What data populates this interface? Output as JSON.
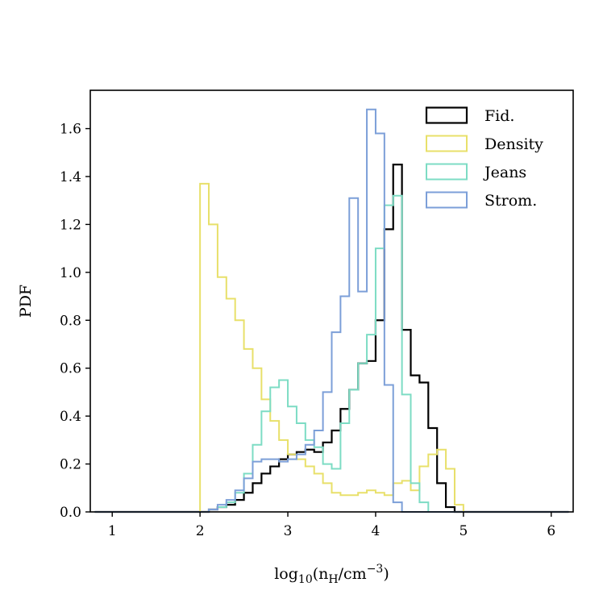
{
  "chart_data": {
    "type": "histogram-step",
    "title": "",
    "xlabel": {
      "prefix": "log",
      "prefix_sub": "10",
      "open": "(n",
      "n_sub": "H",
      "mid": "/cm",
      "exp": "−3",
      "close": ")"
    },
    "ylabel": "PDF",
    "xlim": [
      0.75,
      6.25
    ],
    "ylim": [
      0.0,
      1.76
    ],
    "xticks": [
      1,
      2,
      3,
      4,
      5,
      6
    ],
    "xtick_labels": [
      "1",
      "2",
      "3",
      "4",
      "5",
      "6"
    ],
    "yticks": [
      0.0,
      0.2,
      0.4,
      0.6,
      0.8,
      1.0,
      1.2,
      1.4,
      1.6
    ],
    "ytick_labels": [
      "0.0",
      "0.2",
      "0.4",
      "0.6",
      "0.8",
      "1.0",
      "1.2",
      "1.4",
      "1.6"
    ],
    "legend_position": "top-right",
    "bin_edges": [
      0.8,
      0.9,
      1.0,
      1.1,
      1.2,
      1.3,
      1.4,
      1.5,
      1.6,
      1.7,
      1.8,
      1.9,
      2.0,
      2.1,
      2.2,
      2.3,
      2.4,
      2.5,
      2.6,
      2.7,
      2.8,
      2.9,
      3.0,
      3.1,
      3.2,
      3.3,
      3.4,
      3.5,
      3.6,
      3.7,
      3.8,
      3.9,
      4.0,
      4.1,
      4.2,
      4.3,
      4.4,
      4.5,
      4.6,
      4.7,
      4.8,
      4.9,
      5.0,
      5.1,
      5.2,
      5.3,
      5.4,
      5.5,
      5.6,
      5.7,
      5.8,
      5.9,
      6.0,
      6.1,
      6.2
    ],
    "series": [
      {
        "name": "Fid.",
        "color": "#000000",
        "values": [
          0,
          0,
          0,
          0,
          0,
          0,
          0,
          0,
          0,
          0,
          0,
          0,
          0.0,
          0.01,
          0.02,
          0.03,
          0.05,
          0.08,
          0.12,
          0.16,
          0.19,
          0.22,
          0.24,
          0.25,
          0.26,
          0.25,
          0.29,
          0.34,
          0.43,
          0.51,
          0.62,
          0.63,
          0.8,
          1.18,
          1.45,
          0.76,
          0.57,
          0.54,
          0.35,
          0.12,
          0.02,
          0,
          0,
          0,
          0,
          0,
          0,
          0,
          0,
          0,
          0,
          0,
          0,
          0
        ]
      },
      {
        "name": "Density",
        "color": "#e8e06a",
        "values": [
          0,
          0,
          0,
          0,
          0,
          0,
          0,
          0,
          0,
          0,
          0,
          0,
          1.37,
          1.2,
          0.98,
          0.89,
          0.8,
          0.68,
          0.6,
          0.47,
          0.38,
          0.3,
          0.24,
          0.22,
          0.19,
          0.16,
          0.12,
          0.08,
          0.07,
          0.07,
          0.08,
          0.09,
          0.08,
          0.07,
          0.12,
          0.13,
          0.09,
          0.19,
          0.24,
          0.26,
          0.18,
          0.03,
          0,
          0,
          0,
          0,
          0,
          0,
          0,
          0,
          0,
          0,
          0,
          0
        ]
      },
      {
        "name": "Jeans",
        "color": "#7ddcc4",
        "values": [
          0,
          0,
          0,
          0,
          0,
          0,
          0,
          0,
          0,
          0,
          0,
          0,
          0.0,
          0.01,
          0.02,
          0.04,
          0.08,
          0.16,
          0.28,
          0.42,
          0.52,
          0.55,
          0.44,
          0.37,
          0.3,
          0.27,
          0.2,
          0.18,
          0.37,
          0.51,
          0.62,
          0.74,
          1.1,
          1.28,
          1.32,
          0.49,
          0.12,
          0.04,
          0,
          0,
          0,
          0,
          0,
          0,
          0,
          0,
          0,
          0,
          0,
          0,
          0,
          0,
          0,
          0
        ]
      },
      {
        "name": "Strom.",
        "color": "#7c9fd8",
        "values": [
          0,
          0,
          0,
          0,
          0,
          0,
          0,
          0,
          0,
          0,
          0,
          0,
          0.0,
          0.01,
          0.03,
          0.05,
          0.09,
          0.14,
          0.21,
          0.22,
          0.22,
          0.21,
          0.22,
          0.24,
          0.28,
          0.34,
          0.5,
          0.75,
          0.9,
          1.31,
          0.92,
          1.68,
          1.58,
          0.53,
          0.04,
          0.0,
          0,
          0,
          0,
          0,
          0,
          0,
          0,
          0,
          0,
          0,
          0,
          0,
          0,
          0,
          0,
          0,
          0,
          0
        ]
      }
    ]
  }
}
